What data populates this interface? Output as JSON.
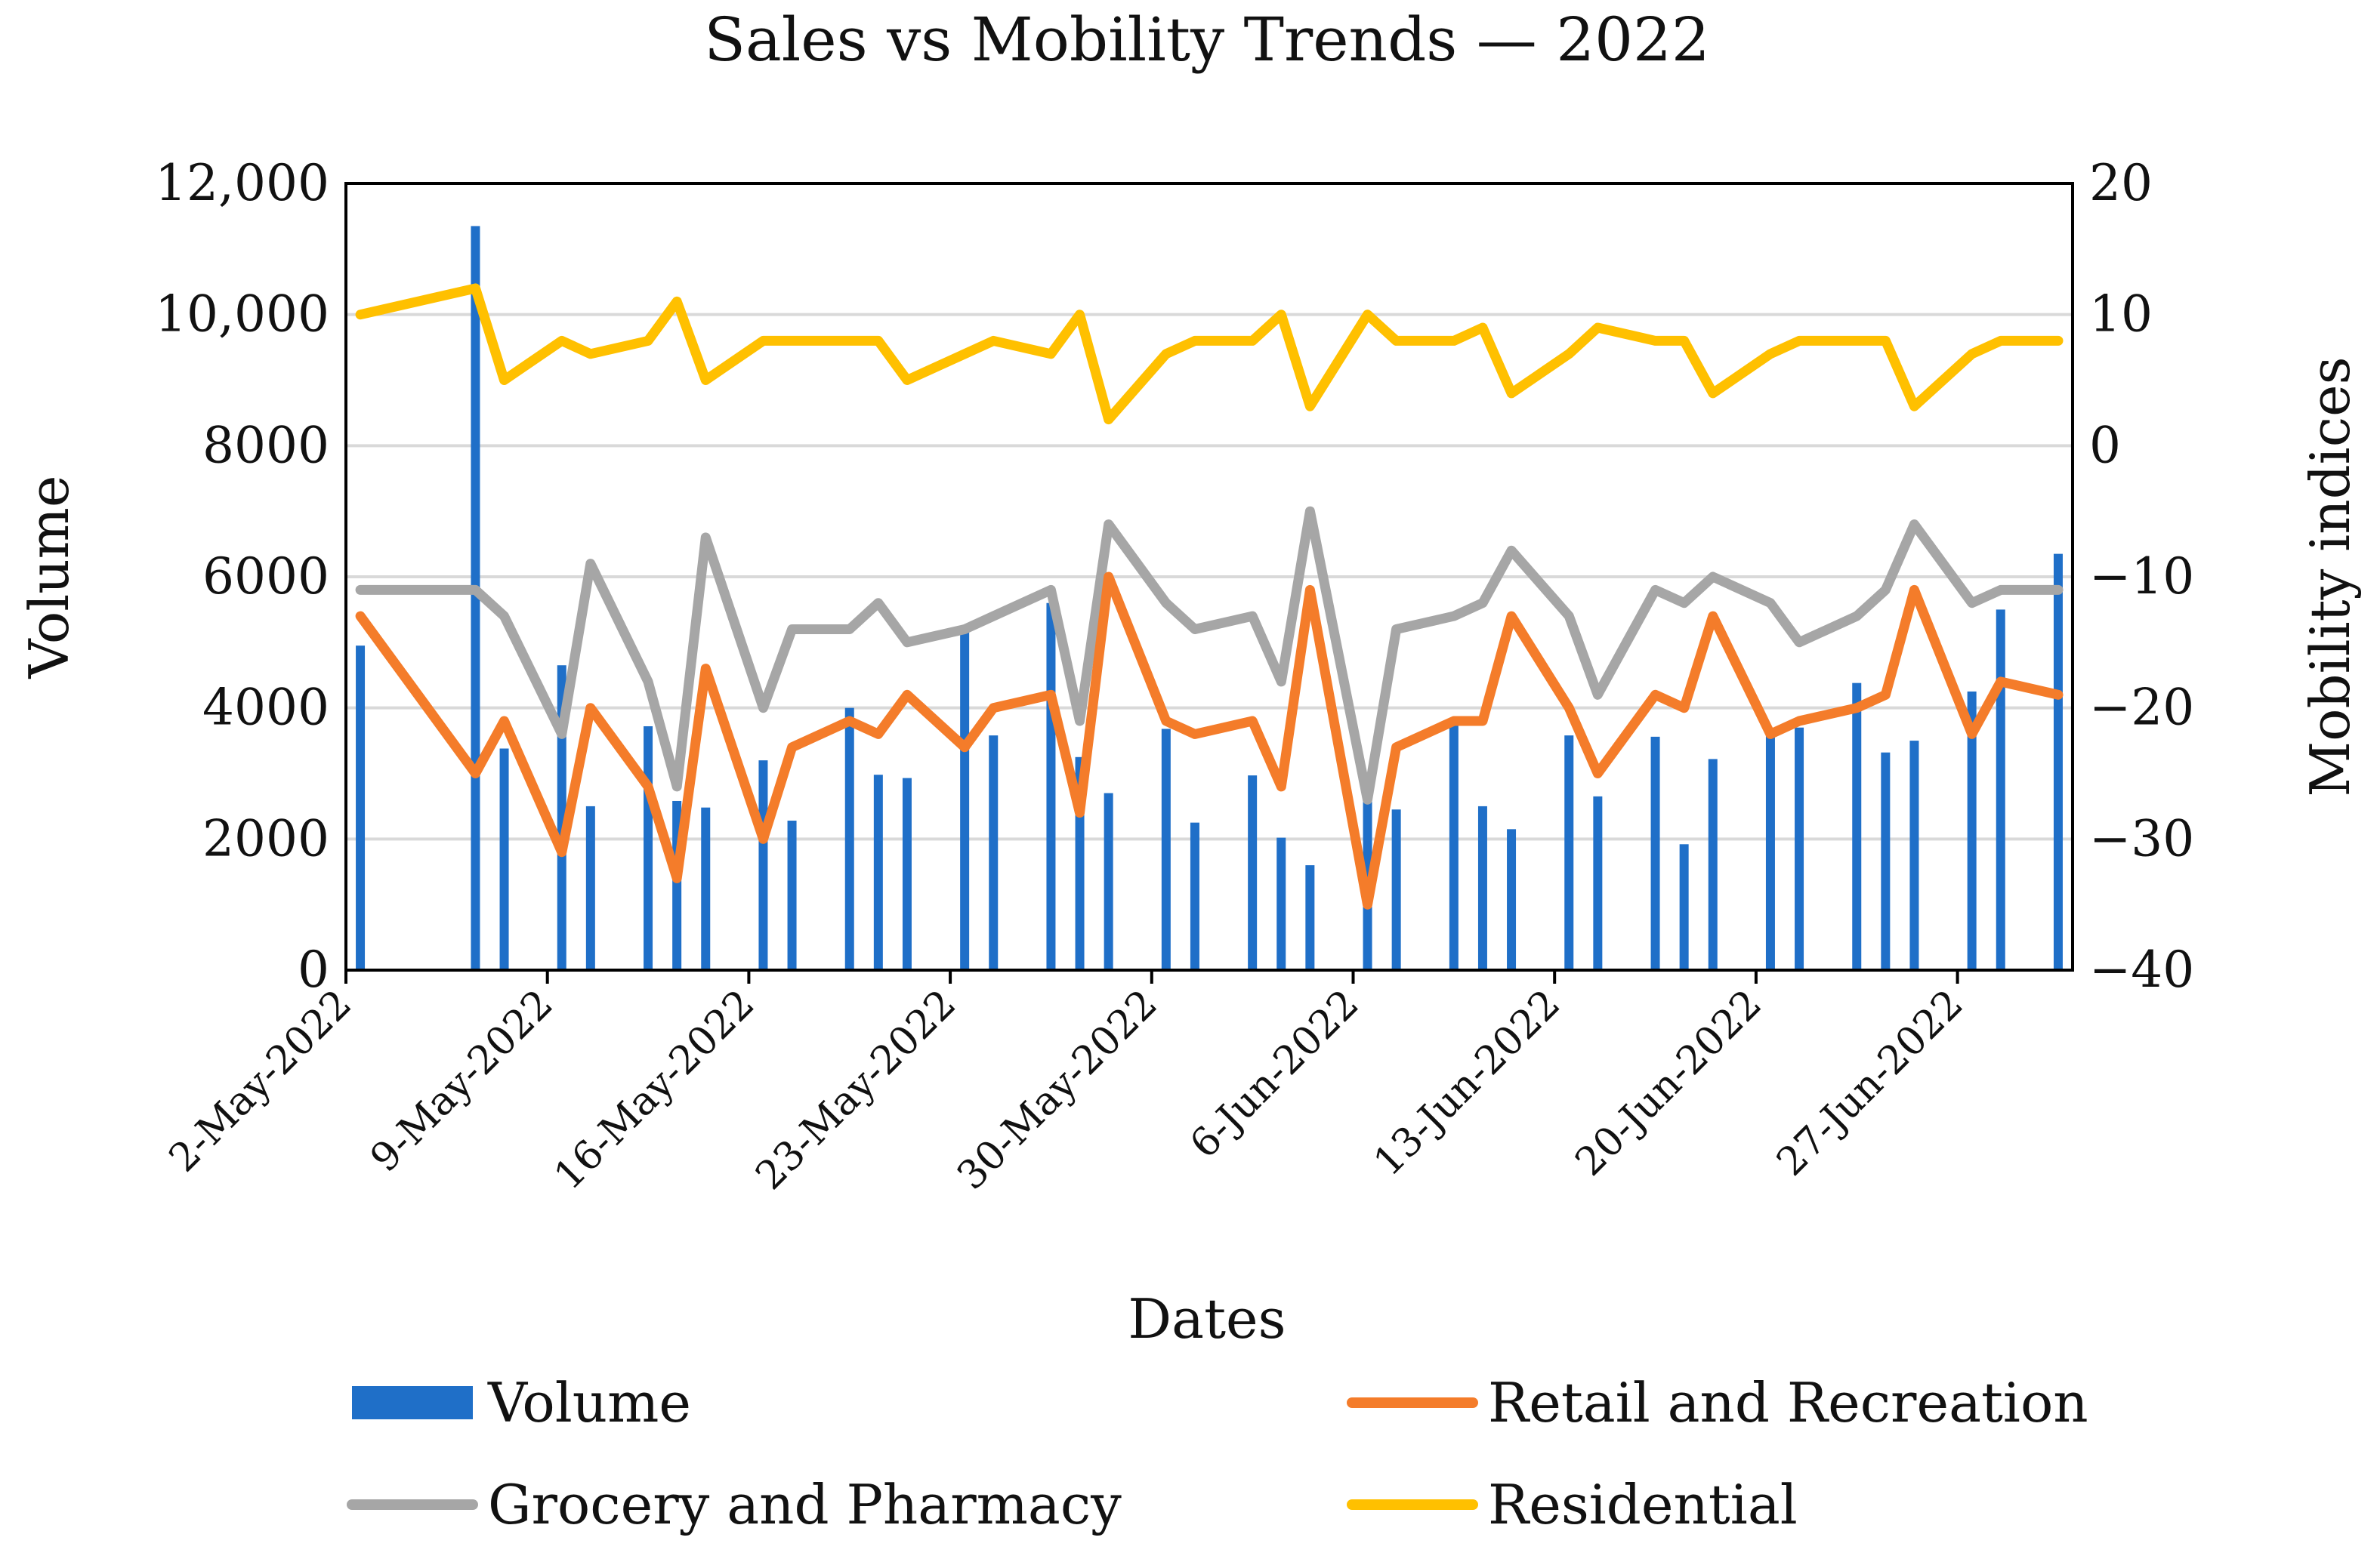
{
  "chart_data": {
    "type": "bar+line",
    "title": "Sales vs Mobility Trends — 2022",
    "xlabel": "Dates",
    "ylabel": "Volume",
    "y2label": "Mobility indices",
    "ylim": [
      0,
      12000
    ],
    "y2lim": [
      -40,
      20
    ],
    "yticks": [
      {
        "value": 0,
        "label": "0"
      },
      {
        "value": 2000,
        "label": "2000"
      },
      {
        "value": 4000,
        "label": "4000"
      },
      {
        "value": 6000,
        "label": "6000"
      },
      {
        "value": 8000,
        "label": "8000"
      },
      {
        "value": 10000,
        "label": "10,000"
      },
      {
        "value": 12000,
        "label": "12,000"
      }
    ],
    "y2ticks": [
      {
        "value": -40,
        "label": "−40"
      },
      {
        "value": -30,
        "label": "−30"
      },
      {
        "value": -20,
        "label": "−20"
      },
      {
        "value": -10,
        "label": "−10"
      },
      {
        "value": 0,
        "label": "0"
      },
      {
        "value": 10,
        "label": "10"
      },
      {
        "value": 20,
        "label": "20"
      }
    ],
    "xlim": [
      0,
      60
    ],
    "xticks": [
      {
        "day": 0,
        "label": "2-May-2022"
      },
      {
        "day": 7,
        "label": "9-May-2022"
      },
      {
        "day": 14,
        "label": "16-May-2022"
      },
      {
        "day": 21,
        "label": "23-May-2022"
      },
      {
        "day": 28,
        "label": "30-May-2022"
      },
      {
        "day": 35,
        "label": "6-Jun-2022"
      },
      {
        "day": 42,
        "label": "13-Jun-2022"
      },
      {
        "day": 49,
        "label": "20-Jun-2022"
      },
      {
        "day": 56,
        "label": "27-Jun-2022"
      }
    ],
    "days": [
      0.5,
      4.5,
      5.5,
      7.5,
      8.5,
      10.5,
      11.5,
      12.5,
      14.5,
      15.5,
      17.5,
      18.5,
      19.5,
      21.5,
      22.5,
      24.5,
      25.5,
      26.5,
      28.5,
      29.5,
      31.5,
      32.5,
      33.5,
      35.5,
      36.5,
      38.5,
      39.5,
      40.5,
      42.5,
      43.5,
      45.5,
      46.5,
      47.5,
      49.5,
      50.5,
      52.5,
      53.5,
      54.5,
      56.5,
      57.5,
      59.5
    ],
    "series": [
      {
        "name": "Volume",
        "kind": "bar",
        "axis": "left",
        "color": "#1f6fc8",
        "values": [
          4950,
          11350,
          3380,
          4650,
          2500,
          3720,
          2580,
          2480,
          3200,
          2280,
          4000,
          2980,
          2930,
          5200,
          3580,
          5600,
          3250,
          2700,
          3680,
          2250,
          2970,
          2020,
          1600,
          2700,
          2450,
          3850,
          2500,
          2150,
          3580,
          2650,
          3560,
          1920,
          3220,
          3600,
          3700,
          4380,
          3320,
          3500,
          4250,
          5500,
          6350
        ]
      },
      {
        "name": "Retail and Recreation",
        "kind": "line",
        "axis": "right",
        "color": "#f47c2a",
        "values": [
          -13,
          -25,
          -21,
          -31,
          -20,
          -26,
          -33,
          -17,
          -30,
          -23,
          -21,
          -22,
          -19,
          -23,
          -20,
          -19,
          -28,
          -10,
          -21,
          -22,
          -21,
          -26,
          -11,
          -35,
          -23,
          -21,
          -21,
          -13,
          -20,
          -25,
          -19,
          -20,
          -13,
          -22,
          -21,
          -20,
          -19,
          -11,
          -22,
          -18,
          -19
        ]
      },
      {
        "name": "Grocery and Pharmacy",
        "kind": "line",
        "axis": "right",
        "color": "#a6a6a6",
        "values": [
          -11,
          -11,
          -13,
          -22,
          -9,
          -18,
          -26,
          -7,
          -20,
          -14,
          -14,
          -12,
          -15,
          -14,
          -13,
          -11,
          -21,
          -6,
          -12,
          -14,
          -13,
          -18,
          -5,
          -27,
          -14,
          -13,
          -12,
          -8,
          -13,
          -19,
          -11,
          -12,
          -10,
          -12,
          -15,
          -13,
          -11,
          -6,
          -12,
          -11,
          -11
        ]
      },
      {
        "name": "Residential",
        "kind": "line",
        "axis": "right",
        "color": "#ffc000",
        "values": [
          10,
          12,
          5,
          8,
          7,
          8,
          11,
          5,
          8,
          8,
          8,
          8,
          5,
          7,
          8,
          7,
          10,
          2,
          7,
          8,
          8,
          10,
          3,
          10,
          8,
          8,
          9,
          4,
          7,
          9,
          8,
          8,
          4,
          7,
          8,
          8,
          8,
          3,
          7,
          8,
          8
        ]
      }
    ]
  }
}
